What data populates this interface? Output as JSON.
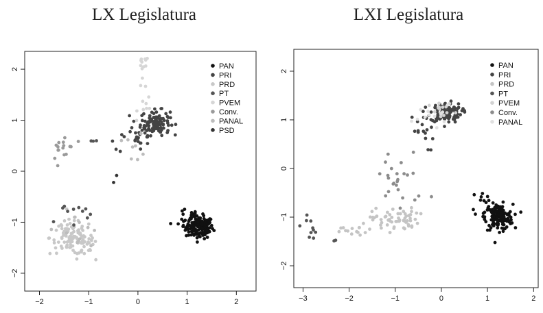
{
  "chart_data": [
    {
      "type": "scatter",
      "title": "LX Legislatura",
      "xlabel": "",
      "ylabel": "",
      "xlim": [
        -2.3,
        2.4
      ],
      "ylim": [
        -2.35,
        2.35
      ],
      "xticks": [
        -2,
        -1,
        0,
        1,
        2
      ],
      "yticks": [
        -2,
        -1,
        0,
        1,
        2
      ],
      "grid": false,
      "legend_position": "top-right",
      "series": [
        {
          "name": "PAN",
          "color": "#111111",
          "clusters": [
            {
              "cx": 1.25,
              "cy": -1.1,
              "sx": 0.14,
              "sy": 0.11,
              "n": 140
            },
            {
              "cx": 1.1,
              "cy": -0.9,
              "sx": 0.2,
              "sy": 0.15,
              "n": 20
            }
          ]
        },
        {
          "name": "PRI",
          "color": "#444444",
          "clusters": [
            {
              "cx": 0.35,
              "cy": 0.95,
              "sx": 0.15,
              "sy": 0.12,
              "n": 110
            },
            {
              "cx": 0.05,
              "cy": 0.7,
              "sx": 0.1,
              "sy": 0.12,
              "n": 15
            },
            {
              "cx": -0.3,
              "cy": 0.6,
              "sx": 0.15,
              "sy": 0.08,
              "n": 8
            }
          ]
        },
        {
          "name": "PRD",
          "color": "#c8c8c8",
          "clusters": [
            {
              "cx": -1.35,
              "cy": -1.3,
              "sx": 0.22,
              "sy": 0.17,
              "n": 100
            },
            {
              "cx": -1.1,
              "cy": -1.5,
              "sx": 0.15,
              "sy": 0.15,
              "n": 20
            }
          ]
        },
        {
          "name": "PT",
          "color": "#555555",
          "clusters": [
            {
              "cx": -1.45,
              "cy": -0.9,
              "sx": 0.1,
              "sy": 0.1,
              "n": 6
            },
            {
              "cx": -1.05,
              "cy": -0.75,
              "sx": 0.1,
              "sy": 0.1,
              "n": 5
            },
            {
              "cx": -0.9,
              "cy": 0.62,
              "sx": 0.05,
              "sy": 0.08,
              "n": 3
            }
          ]
        },
        {
          "name": "PVEM",
          "color": "#d6d6d6",
          "clusters": [
            {
              "cx": 0.1,
              "cy": 1.9,
              "sx": 0.06,
              "sy": 0.22,
              "n": 14
            },
            {
              "cx": 0.2,
              "cy": 1.3,
              "sx": 0.1,
              "sy": 0.12,
              "n": 8
            }
          ]
        },
        {
          "name": "Conv.",
          "color": "#9a9a9a",
          "clusters": [
            {
              "cx": -1.5,
              "cy": 0.45,
              "sx": 0.12,
              "sy": 0.2,
              "n": 16
            }
          ]
        },
        {
          "name": "PANAL",
          "color": "#bcbcbc",
          "clusters": [
            {
              "cx": -0.05,
              "cy": 0.45,
              "sx": 0.1,
              "sy": 0.15,
              "n": 8
            },
            {
              "cx": -1.2,
              "cy": -1.1,
              "sx": 0.25,
              "sy": 0.2,
              "n": 10
            }
          ]
        },
        {
          "name": "PSD",
          "color": "#333333",
          "clusters": [
            {
              "cx": -0.5,
              "cy": -0.15,
              "sx": 0.05,
              "sy": 0.05,
              "n": 2
            }
          ]
        }
      ]
    },
    {
      "type": "scatter",
      "title": "LXI Legislatura",
      "xlabel": "",
      "ylabel": "",
      "xlim": [
        -3.2,
        2.1
      ],
      "ylim": [
        -2.45,
        2.45
      ],
      "xticks": [
        -3,
        -2,
        -1,
        0,
        1,
        2
      ],
      "yticks": [
        -2,
        -1,
        0,
        1,
        2
      ],
      "grid": false,
      "legend_position": "top-right",
      "series": [
        {
          "name": "PAN",
          "color": "#111111",
          "clusters": [
            {
              "cx": 1.25,
              "cy": -1.0,
              "sx": 0.15,
              "sy": 0.13,
              "n": 150
            },
            {
              "cx": 0.95,
              "cy": -0.7,
              "sx": 0.15,
              "sy": 0.15,
              "n": 15
            }
          ]
        },
        {
          "name": "PRI",
          "color": "#444444",
          "clusters": [
            {
              "cx": 0.1,
              "cy": 1.15,
              "sx": 0.17,
              "sy": 0.1,
              "n": 120
            },
            {
              "cx": -0.45,
              "cy": 0.75,
              "sx": 0.15,
              "sy": 0.2,
              "n": 15
            }
          ]
        },
        {
          "name": "PRD",
          "color": "#c4c4c4",
          "clusters": [
            {
              "cx": -1.0,
              "cy": -1.05,
              "sx": 0.25,
              "sy": 0.12,
              "n": 60
            },
            {
              "cx": -1.9,
              "cy": -1.3,
              "sx": 0.25,
              "sy": 0.08,
              "n": 15
            }
          ]
        },
        {
          "name": "PT",
          "color": "#555555",
          "clusters": [
            {
              "cx": -2.8,
              "cy": -1.2,
              "sx": 0.12,
              "sy": 0.15,
              "n": 10
            },
            {
              "cx": -2.35,
              "cy": -1.5,
              "sx": 0.05,
              "sy": 0.05,
              "n": 2
            }
          ]
        },
        {
          "name": "PVEM",
          "color": "#d2d2d2",
          "clusters": [
            {
              "cx": 0.05,
              "cy": 1.15,
              "sx": 0.15,
              "sy": 0.1,
              "n": 15
            }
          ]
        },
        {
          "name": "Conv.",
          "color": "#8c8c8c",
          "clusters": [
            {
              "cx": -0.9,
              "cy": -0.25,
              "sx": 0.3,
              "sy": 0.35,
              "n": 25
            }
          ]
        },
        {
          "name": "PANAL",
          "color": "#e0e0e0",
          "clusters": [
            {
              "cx": -0.2,
              "cy": 1.1,
              "sx": 0.2,
              "sy": 0.1,
              "n": 12
            }
          ]
        }
      ]
    }
  ]
}
